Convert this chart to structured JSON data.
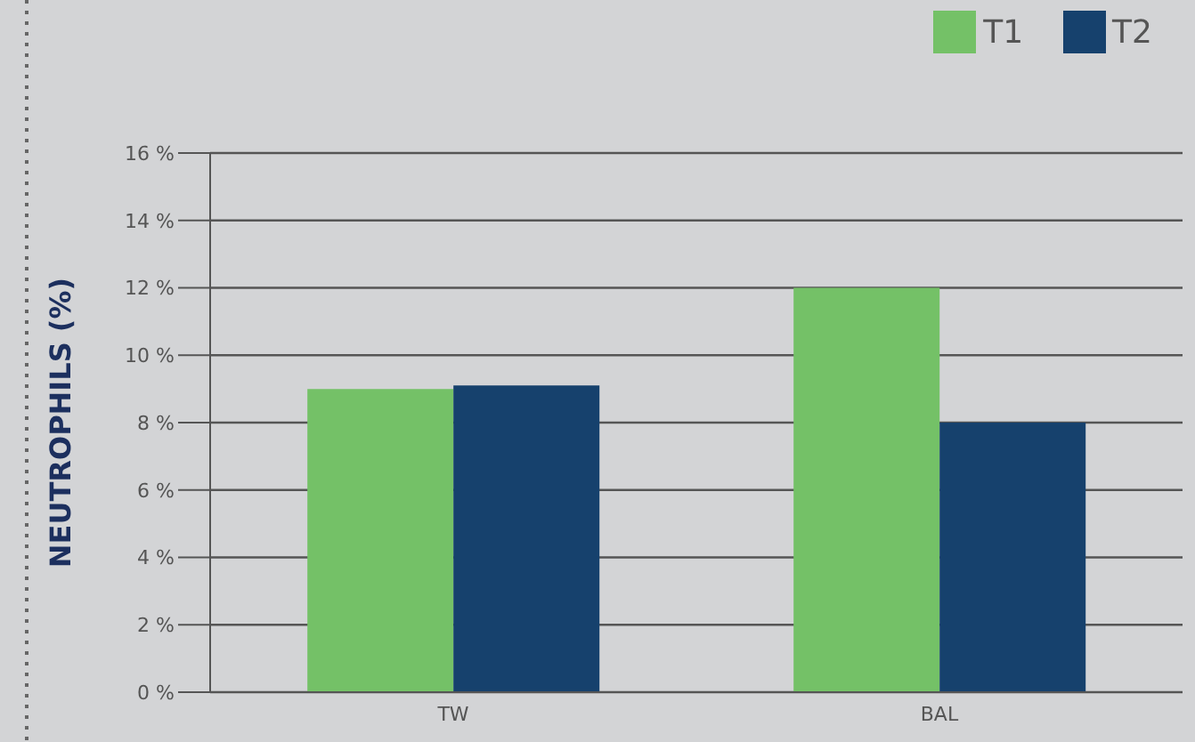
{
  "chart_data": {
    "type": "bar",
    "ylabel": "NEUTROPHILS (%)",
    "categories": [
      "TW",
      "BAL"
    ],
    "series": [
      {
        "name": "T1",
        "color": "#74c167",
        "values": [
          9,
          12
        ]
      },
      {
        "name": "T2",
        "color": "#16416d",
        "values": [
          9.1,
          8
        ]
      }
    ],
    "ylim": [
      0,
      16
    ],
    "yticks": [
      {
        "value": 0,
        "label": "0 %"
      },
      {
        "value": 2,
        "label": "2 %"
      },
      {
        "value": 4,
        "label": "4 %"
      },
      {
        "value": 6,
        "label": "6 %"
      },
      {
        "value": 8,
        "label": "8 %"
      },
      {
        "value": 10,
        "label": "10 %"
      },
      {
        "value": 12,
        "label": "12 %"
      },
      {
        "value": 14,
        "label": "14 %"
      },
      {
        "value": 16,
        "label": "16 %"
      }
    ],
    "grid": "y",
    "legend": "top right"
  }
}
